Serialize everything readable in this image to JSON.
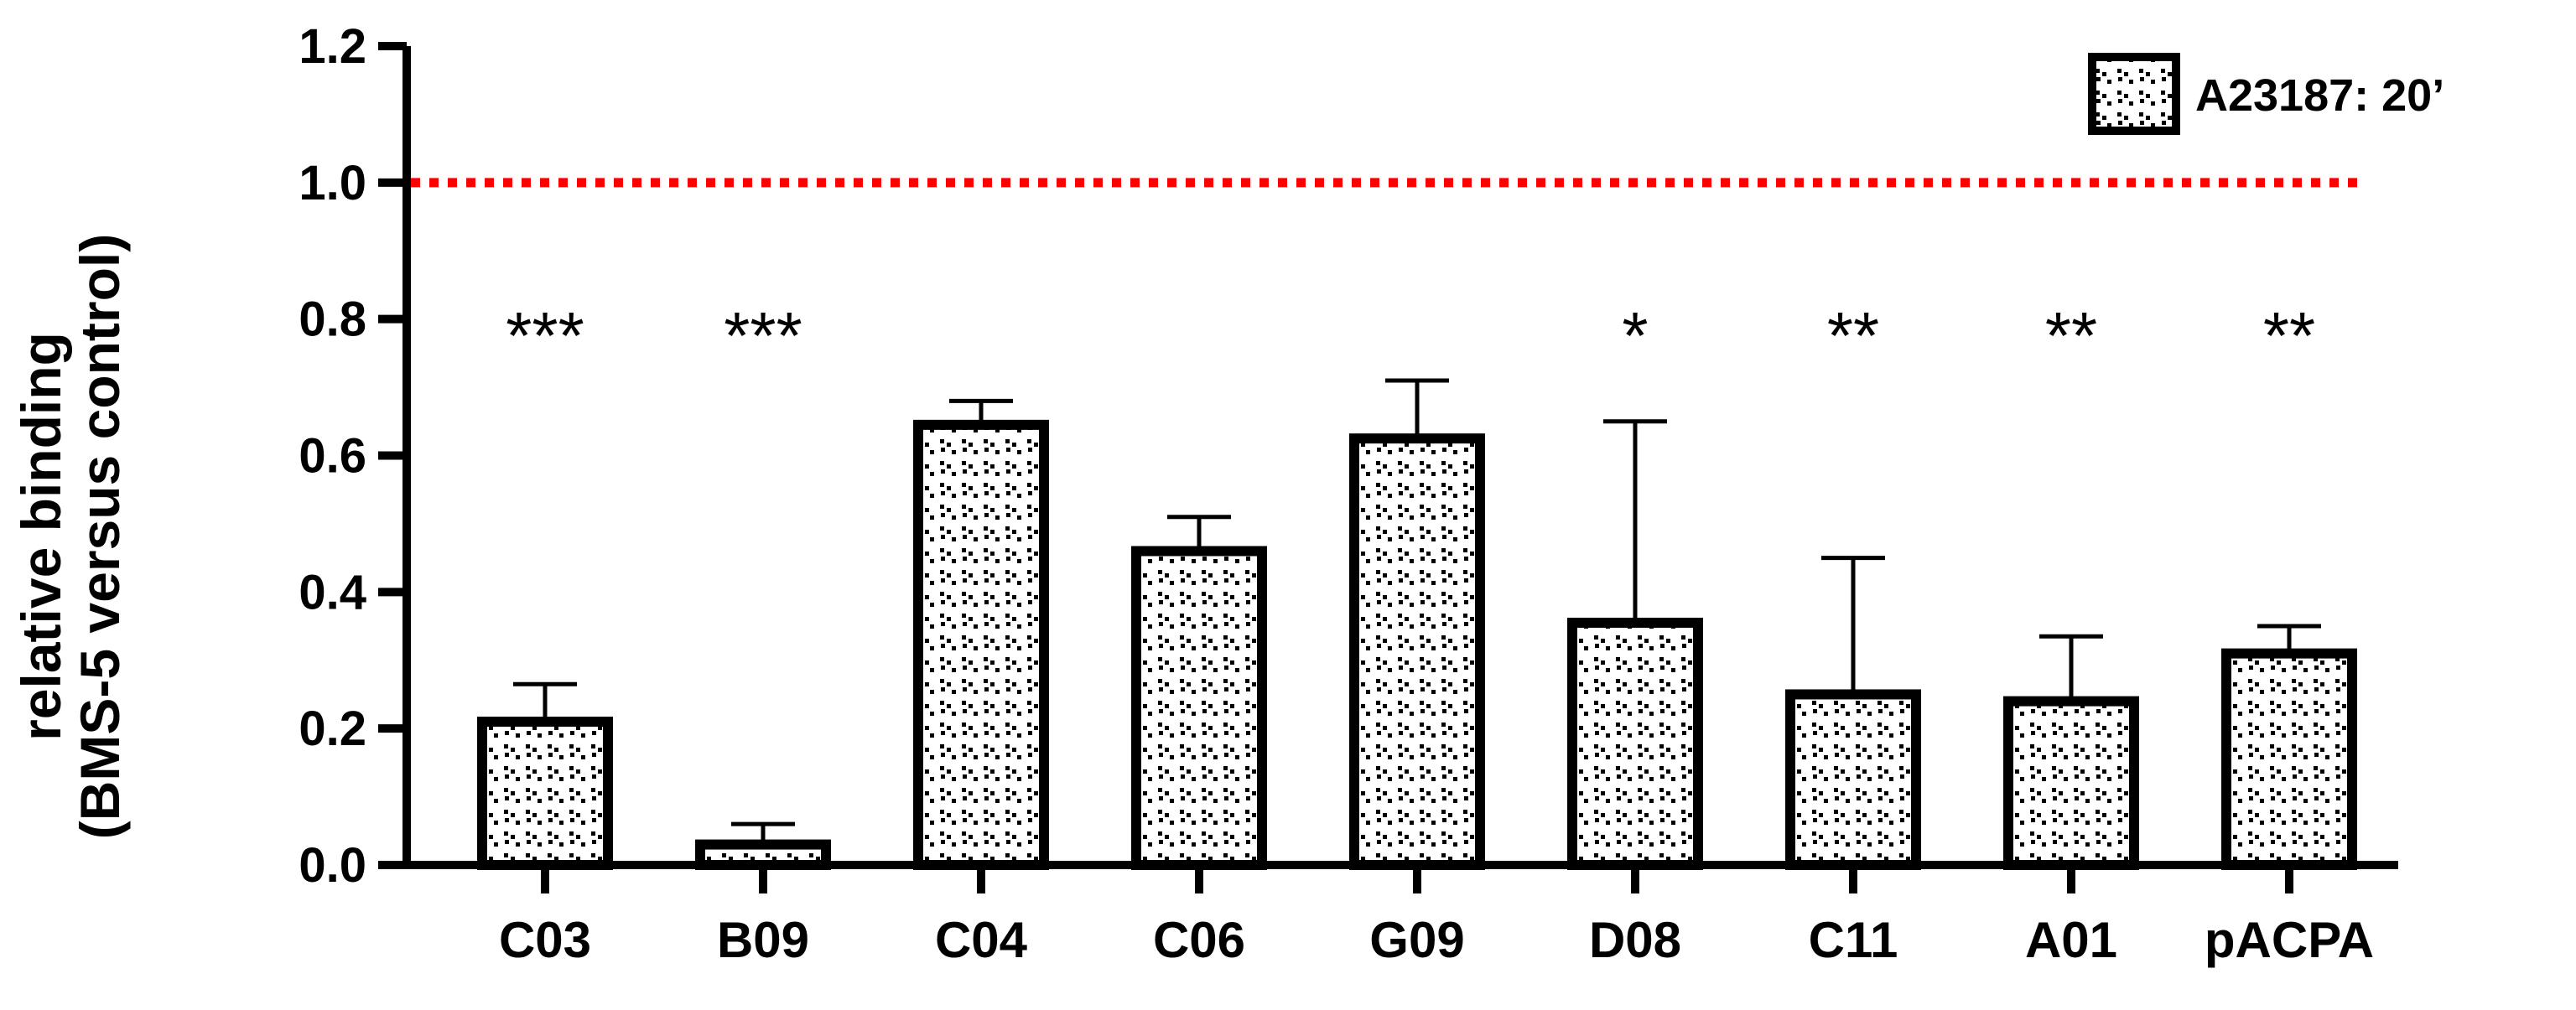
{
  "chart_data": {
    "type": "bar",
    "title": "",
    "xlabel": "",
    "ylabel_lines": [
      "relative binding",
      "(BMS-5 versus control)"
    ],
    "categories": [
      "C03",
      "B09",
      "C04",
      "C06",
      "G09",
      "D08",
      "C11",
      "A01",
      "pACPA"
    ],
    "series": [
      {
        "name": "A23187: 20’",
        "values": [
          0.21,
          0.03,
          0.645,
          0.46,
          0.625,
          0.355,
          0.25,
          0.24,
          0.31
        ],
        "error_upper": [
          0.265,
          0.06,
          0.68,
          0.51,
          0.71,
          0.65,
          0.45,
          0.335,
          0.35
        ]
      }
    ],
    "significance": [
      "***",
      "***",
      "",
      "",
      "",
      "*",
      "**",
      "**",
      "**"
    ],
    "reference_line": {
      "value": 1.0,
      "color": "#ff0000",
      "style": "dotted"
    },
    "ylim": [
      0,
      1.2
    ],
    "yticks": [
      "0.0",
      "0.2",
      "0.4",
      "0.6",
      "0.8",
      "1.0",
      "1.2"
    ],
    "grid": false,
    "legend_position": "top-right"
  }
}
